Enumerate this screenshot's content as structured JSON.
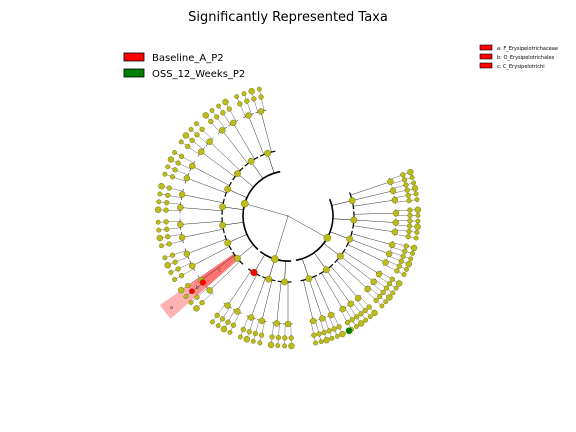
{
  "chart_data": {
    "type": "cladogram",
    "title": "Significantly Represented Taxa",
    "groups": [
      {
        "name": "Baseline_A_P2",
        "color": "#ff0000"
      },
      {
        "name": "OSS_12_Weeks_P2",
        "color": "#008000"
      }
    ],
    "highlighted_taxa": [
      {
        "letter": "a",
        "label": "a: F_Erysipelotrichaceae",
        "group": "Baseline_A_P2"
      },
      {
        "letter": "b",
        "label": "b: O_Erysipelotrichales",
        "group": "Baseline_A_P2"
      },
      {
        "letter": "c",
        "label": "c: C_Erysipelotrichi",
        "group": "Baseline_A_P2"
      }
    ],
    "node_color": "#bcbc1a",
    "background_color": "#ffffff"
  }
}
